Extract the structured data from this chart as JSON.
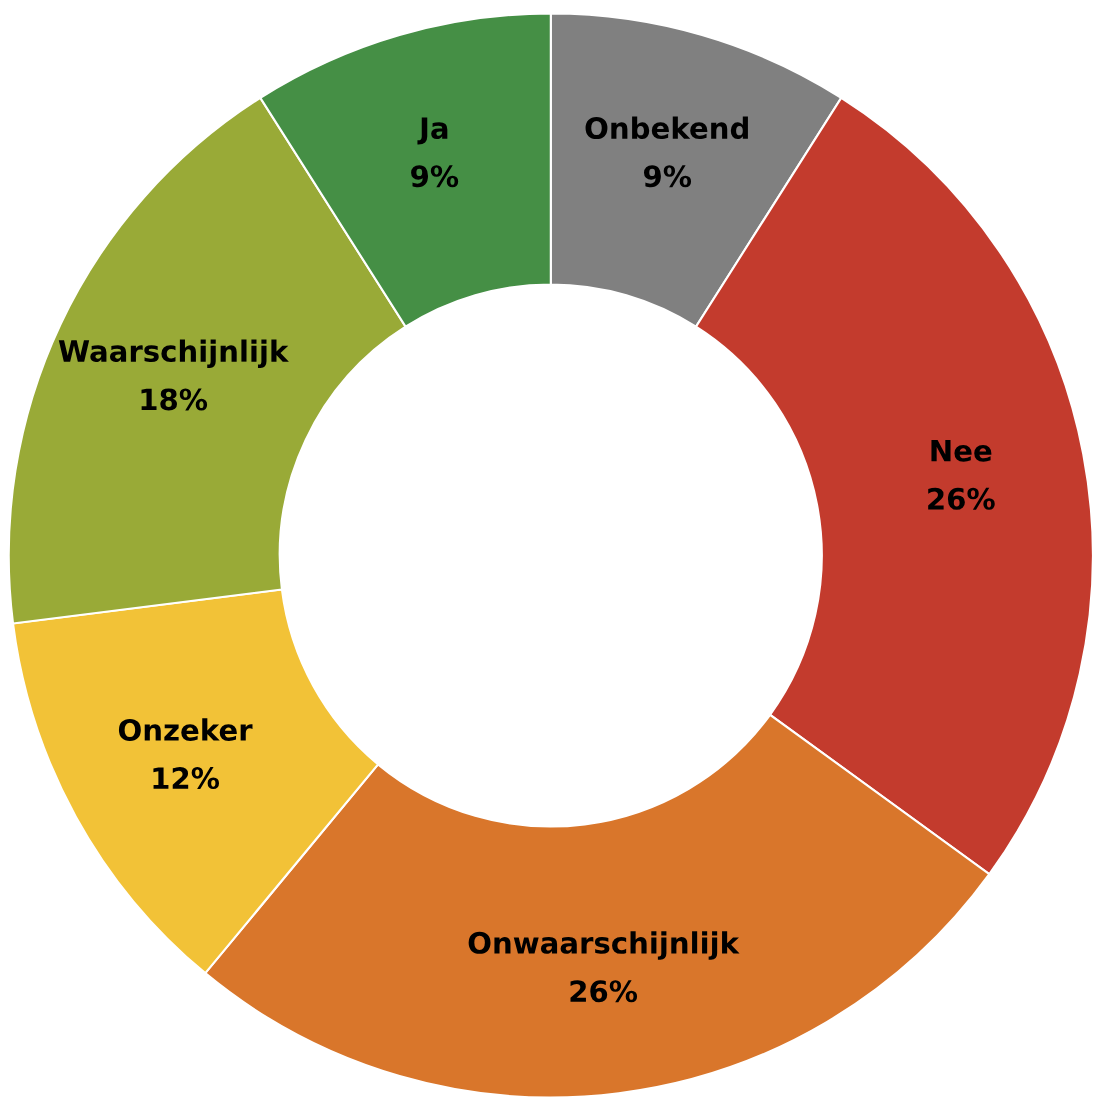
{
  "chart_data": {
    "type": "donut",
    "categories": [
      "Onbekend",
      "Nee",
      "Onwaarschijnlijk",
      "Onzeker",
      "Waarschijnlijk",
      "Ja"
    ],
    "values": [
      9,
      26,
      26,
      12,
      18,
      9
    ],
    "value_labels": [
      "9%",
      "26%",
      "26%",
      "12%",
      "18%",
      "9%"
    ],
    "colors": [
      "#808080",
      "#c33b2d",
      "#d9762b",
      "#f2c237",
      "#99aa37",
      "#458f45"
    ],
    "legend": false
  }
}
